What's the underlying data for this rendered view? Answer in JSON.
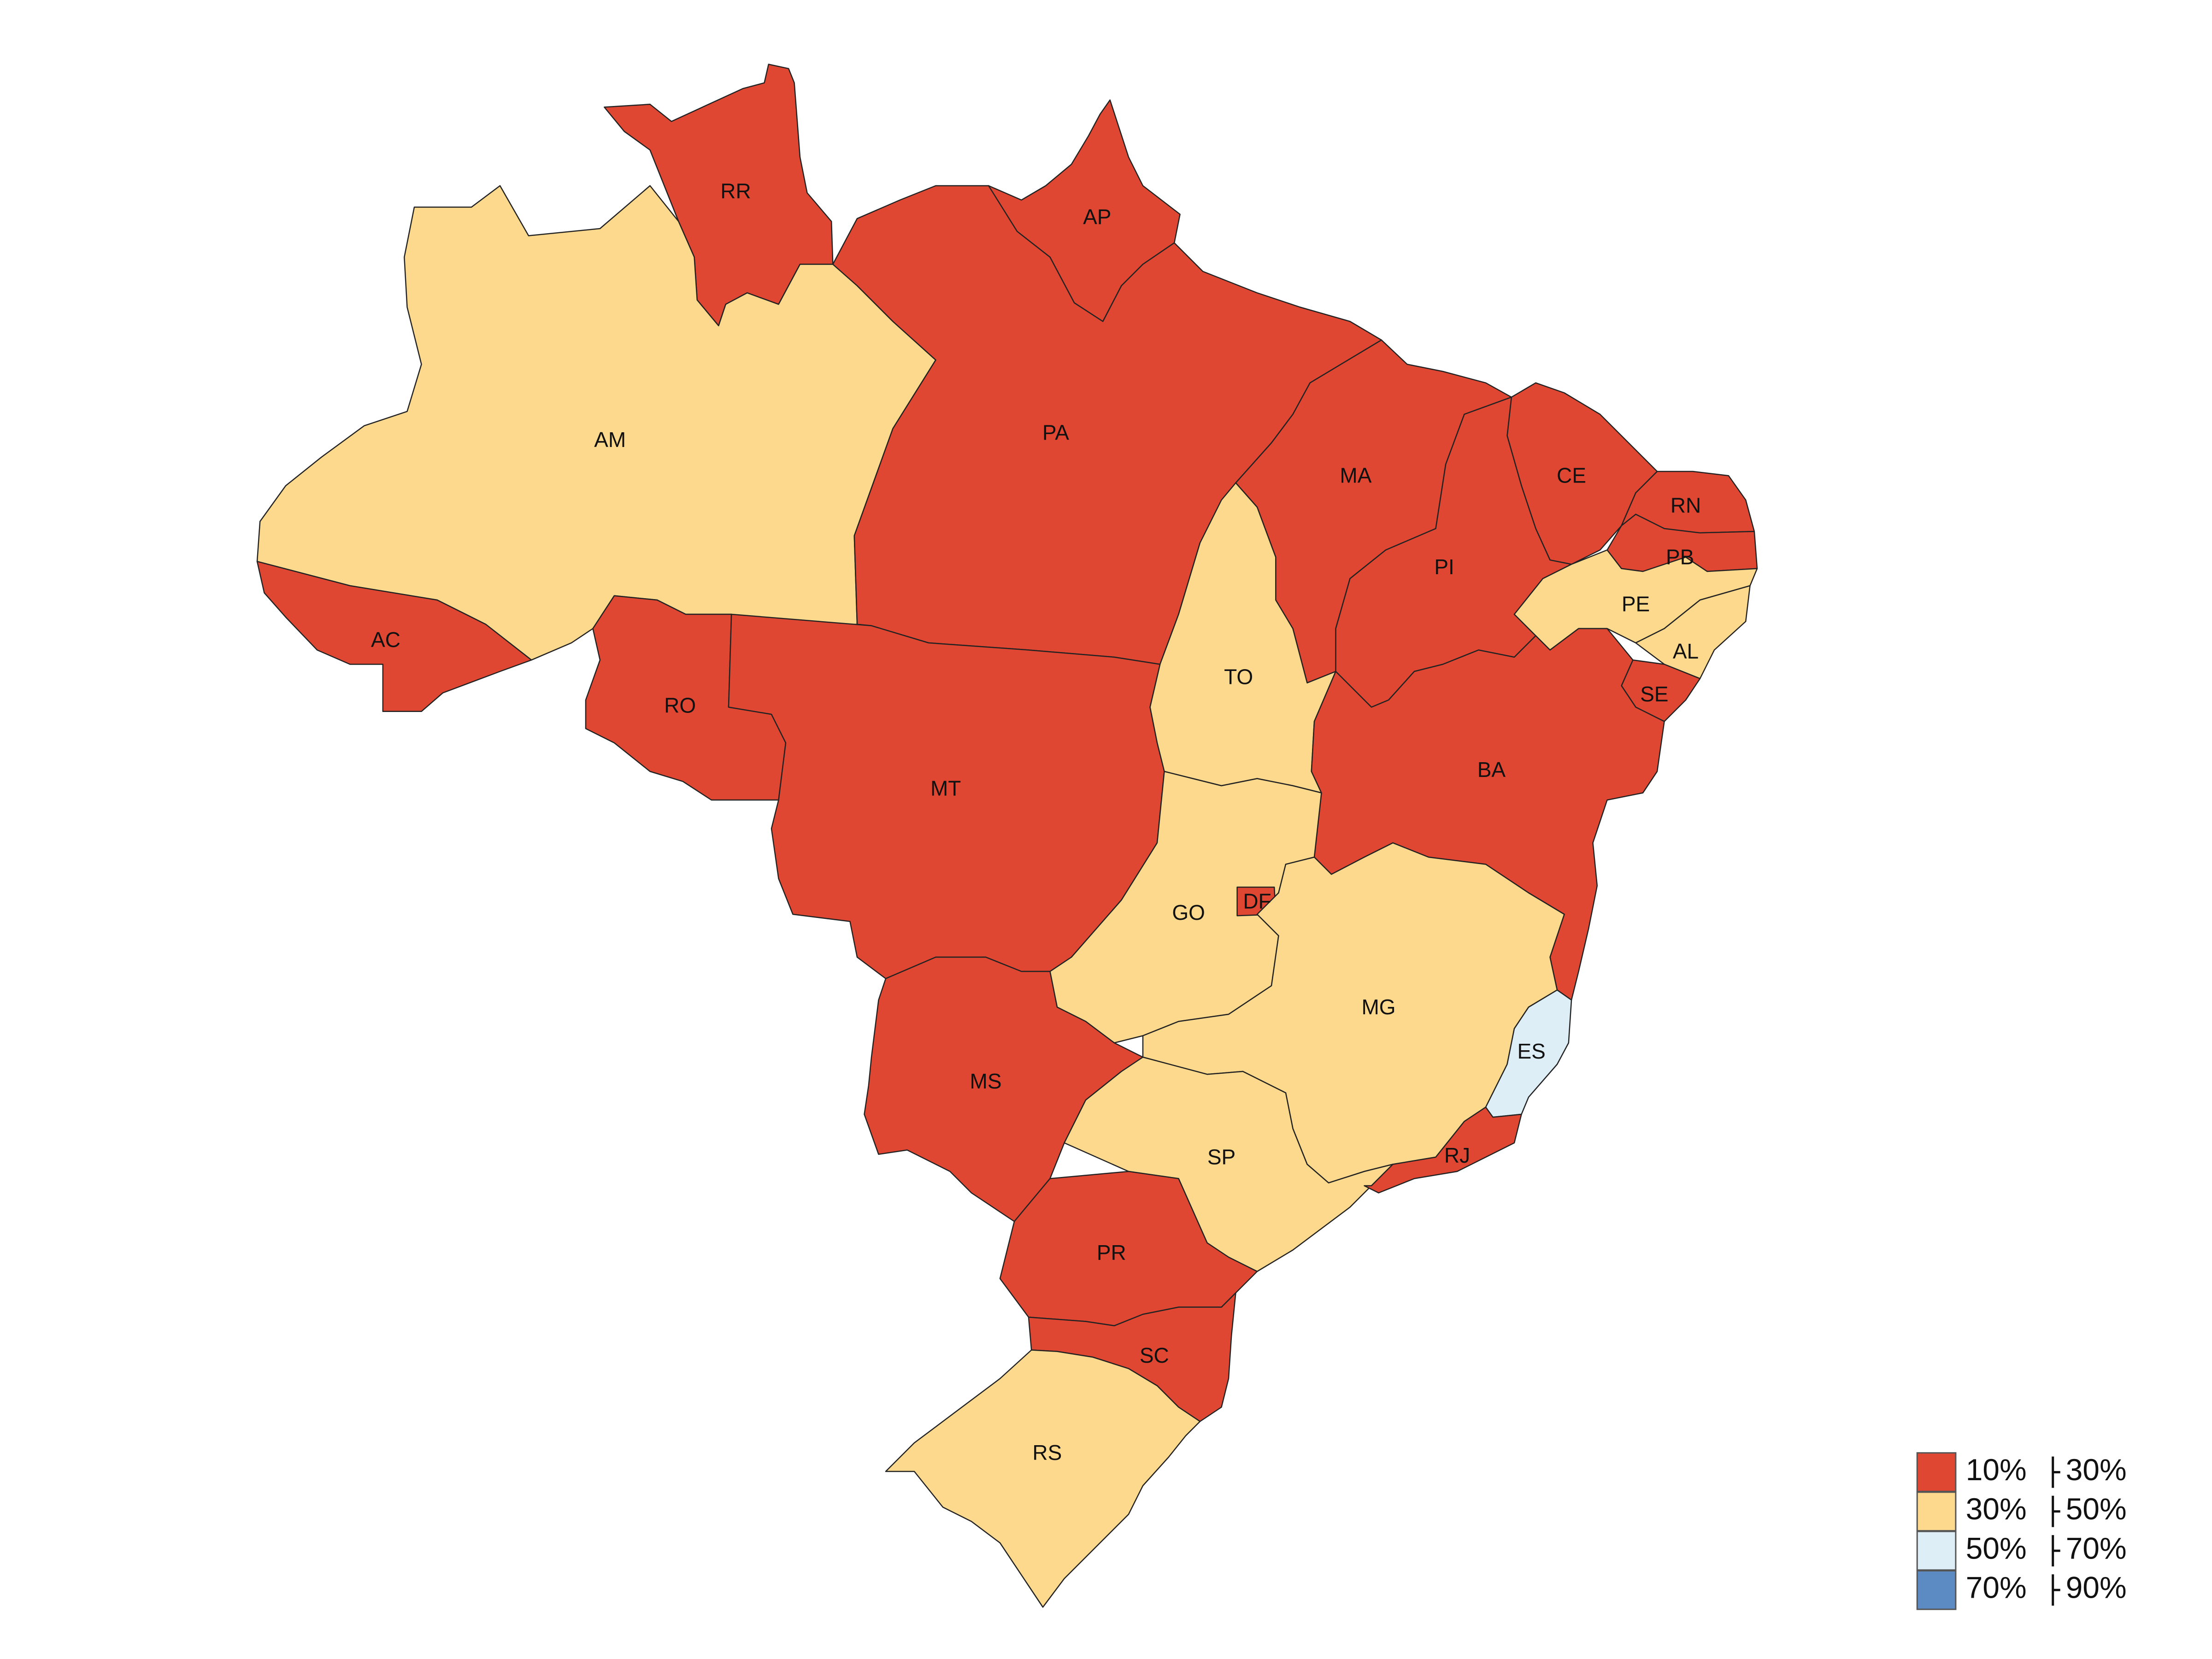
{
  "map": {
    "states": [
      {
        "code": "RR",
        "label": "RR",
        "category": 0
      },
      {
        "code": "AP",
        "label": "AP",
        "category": 0
      },
      {
        "code": "AM",
        "label": "AM",
        "category": 1
      },
      {
        "code": "PA",
        "label": "PA",
        "category": 0
      },
      {
        "code": "MA",
        "label": "MA",
        "category": 0
      },
      {
        "code": "CE",
        "label": "CE",
        "category": 0
      },
      {
        "code": "RN",
        "label": "RN",
        "category": 0
      },
      {
        "code": "PB",
        "label": "PB",
        "category": 0
      },
      {
        "code": "PI",
        "label": "PI",
        "category": 0
      },
      {
        "code": "PE",
        "label": "PE",
        "category": 1
      },
      {
        "code": "AL",
        "label": "AL",
        "category": 1
      },
      {
        "code": "SE",
        "label": "SE",
        "category": 0
      },
      {
        "code": "AC",
        "label": "AC",
        "category": 0
      },
      {
        "code": "RO",
        "label": "RO",
        "category": 0
      },
      {
        "code": "TO",
        "label": "TO",
        "category": 1
      },
      {
        "code": "BA",
        "label": "BA",
        "category": 0
      },
      {
        "code": "MT",
        "label": "MT",
        "category": 0
      },
      {
        "code": "GO",
        "label": "GO",
        "category": 1
      },
      {
        "code": "DF",
        "label": "DF",
        "category": 0
      },
      {
        "code": "MG",
        "label": "MG",
        "category": 1
      },
      {
        "code": "ES",
        "label": "ES",
        "category": 2
      },
      {
        "code": "MS",
        "label": "MS",
        "category": 0
      },
      {
        "code": "SP",
        "label": "SP",
        "category": 1
      },
      {
        "code": "RJ",
        "label": "RJ",
        "category": 0
      },
      {
        "code": "PR",
        "label": "PR",
        "category": 0
      },
      {
        "code": "SC",
        "label": "SC",
        "category": 0
      },
      {
        "code": "RS",
        "label": "RS",
        "category": 1
      }
    ]
  },
  "legend": {
    "items": [
      {
        "from": "10%",
        "to": "30%",
        "color": "#e04733"
      },
      {
        "from": "30%",
        "to": "50%",
        "color": "#fcd98c"
      },
      {
        "from": "50%",
        "to": "70%",
        "color": "#ddeef6"
      },
      {
        "from": "70%",
        "to": "90%",
        "color": "#5b8bc2"
      }
    ]
  }
}
